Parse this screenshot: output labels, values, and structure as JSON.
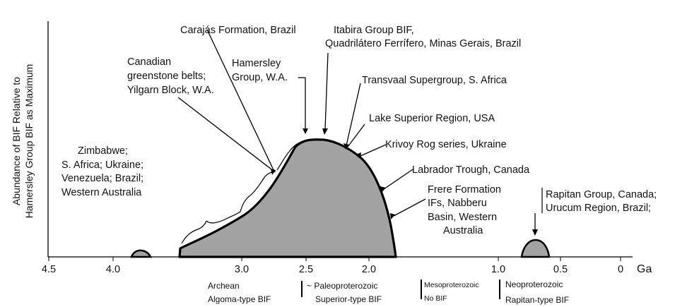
{
  "axes": {
    "y_label_line1": "Abundance of BIF Relative to",
    "y_label_line2": "Hamersley Group BIF as Maximum",
    "x_unit": "Ga",
    "x_ticks": [
      "4.5",
      "4.0",
      "3.0",
      "2.5",
      "2.0",
      "1.0",
      "0.5",
      "0"
    ]
  },
  "labels": {
    "zimbabwe": [
      "Zimbabwe;",
      "S. Africa; Ukraine;",
      "Venezuela; Brazil;",
      "Western Australia"
    ],
    "canadian": [
      "Canadian",
      "greenstone belts;",
      "Yilgarn Block, W.A."
    ],
    "carajas": "Carajás Formation, Brazil",
    "hamersley": [
      "Hamersley",
      "Group, W.A."
    ],
    "itabira": [
      "Itabira Group BIF,",
      "Quadrilátero Ferrífero, Minas Gerais, Brazil"
    ],
    "transvaal": "Transvaal Supergroup, S. Africa",
    "lake_superior": "Lake Superior Region, USA",
    "krivoy": "Krivoy Rog series, Ukraine",
    "labrador": "Labrador Trough, Canada",
    "frere": [
      "Frere Formation",
      "IFs, Nabberu",
      "Basin, Western",
      "Australia"
    ],
    "rapitan": [
      "Rapitan Group, Canada;",
      "Urucum Region, Brazil;"
    ]
  },
  "eras": {
    "archean": [
      "Archean",
      "Algoma-type BIF"
    ],
    "paleo": [
      "~ Paleoproterozoic",
      "Superior-type BIF"
    ],
    "meso": [
      "Mesoproterozoic",
      "No BIF"
    ],
    "neo": [
      "Neoproterozoic",
      "Rapitan-type BIF"
    ]
  },
  "colors": {
    "fill": "#a3a3a3",
    "line": "#000000"
  }
}
